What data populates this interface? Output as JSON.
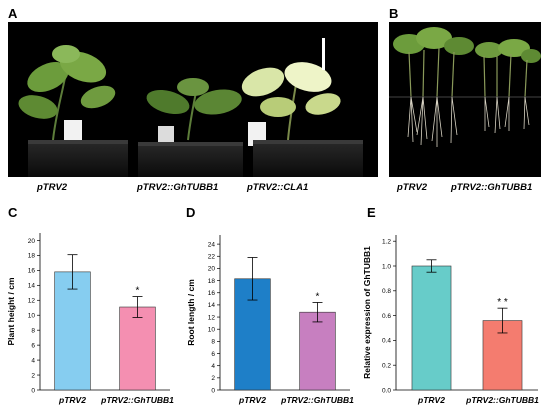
{
  "panels": {
    "A": "A",
    "B": "B",
    "C": "C",
    "D": "D",
    "E": "E"
  },
  "captions": {
    "a_left": "pTRV2",
    "a_mid": "pTRV2::GhTUBB1",
    "a_right": "pTRV2::CLA1",
    "b_left": "pTRV2",
    "b_right": "pTRV2::GhTUBB1"
  },
  "colors": {
    "c_bar1": "#86cdf0",
    "c_bar2": "#f48fb1",
    "d_bar1": "#1e7fc8",
    "d_bar2": "#c77fc0",
    "e_bar1": "#67ccc9",
    "e_bar2": "#f47c6f"
  },
  "chart_data": [
    {
      "type": "bar",
      "panel": "C",
      "categories": [
        "pTRV2",
        "pTRV2::GhTUBB1"
      ],
      "values": [
        15.8,
        11.1
      ],
      "errors": [
        2.3,
        1.4
      ],
      "significance": [
        "",
        "*"
      ],
      "ylabel": "Plant height / cm",
      "ylim": [
        0,
        21
      ],
      "yticks": [
        0,
        2,
        4,
        6,
        8,
        10,
        12,
        14,
        16,
        18,
        20
      ]
    },
    {
      "type": "bar",
      "panel": "D",
      "categories": [
        "pTRV2",
        "pTRV2::GhTUBB1"
      ],
      "values": [
        18.3,
        12.8
      ],
      "errors": [
        3.5,
        1.6
      ],
      "significance": [
        "",
        "*"
      ],
      "ylabel": "Root length / cm",
      "ylim": [
        0,
        25.5
      ],
      "yticks": [
        0,
        2,
        4,
        6,
        8,
        10,
        12,
        14,
        16,
        18,
        20,
        22,
        24
      ]
    },
    {
      "type": "bar",
      "panel": "E",
      "categories": [
        "pTRV2",
        "pTRV2::GhTUBB1"
      ],
      "values": [
        1.0,
        0.56
      ],
      "errors": [
        0.05,
        0.1
      ],
      "significance": [
        "",
        "* *"
      ],
      "ylabel": "Relative expression of GhTUBB1",
      "ylim": [
        0,
        1.25
      ],
      "yticks": [
        "0.0",
        "0.2",
        "0.4",
        "0.6",
        "0.8",
        "1.0",
        "1.2"
      ]
    }
  ]
}
